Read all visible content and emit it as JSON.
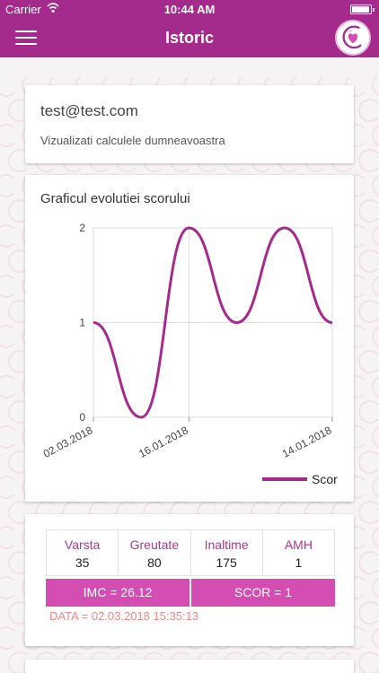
{
  "status_bar": {
    "carrier": "Carrier",
    "time": "10:44 AM"
  },
  "header": {
    "title": "Istoric",
    "menu_icon": "hamburger-menu-icon",
    "logo": "app-logo"
  },
  "user_card": {
    "email": "test@test.com",
    "subtitle": "Vizualizati calculele dumneavoastra"
  },
  "chart_card": {
    "title": "Graficul evolutiei scorului"
  },
  "chart_data": {
    "type": "line",
    "title": "Graficul evolutiei scorului",
    "x": [
      0,
      1,
      2,
      3,
      4,
      5
    ],
    "tick_labels": [
      {
        "pos": 0,
        "text": "02.03.2018"
      },
      {
        "pos": 2,
        "text": "16.01.2018"
      },
      {
        "pos": 5,
        "text": "14.01.2018"
      }
    ],
    "series": [
      {
        "name": "Scor",
        "values": [
          1,
          0,
          2,
          1,
          2,
          1
        ],
        "color": "#a42a8c"
      }
    ],
    "y_ticks": [
      0,
      1,
      2
    ],
    "ylim": [
      0,
      2
    ],
    "grid": true,
    "legend": "bottom-right"
  },
  "record": {
    "columns": [
      {
        "label": "Varsta",
        "value": "35"
      },
      {
        "label": "Greutate",
        "value": "80"
      },
      {
        "label": "Inaltime",
        "value": "175"
      },
      {
        "label": "AMH",
        "value": "1"
      }
    ],
    "imc": "IMC = 26.12",
    "scor": "SCOR = 1",
    "date": "DATA = 02.03.2018 15:35:13"
  },
  "colors": {
    "primary": "#a42a8c",
    "accent": "#d44db3",
    "date_text": "#e8888a"
  }
}
